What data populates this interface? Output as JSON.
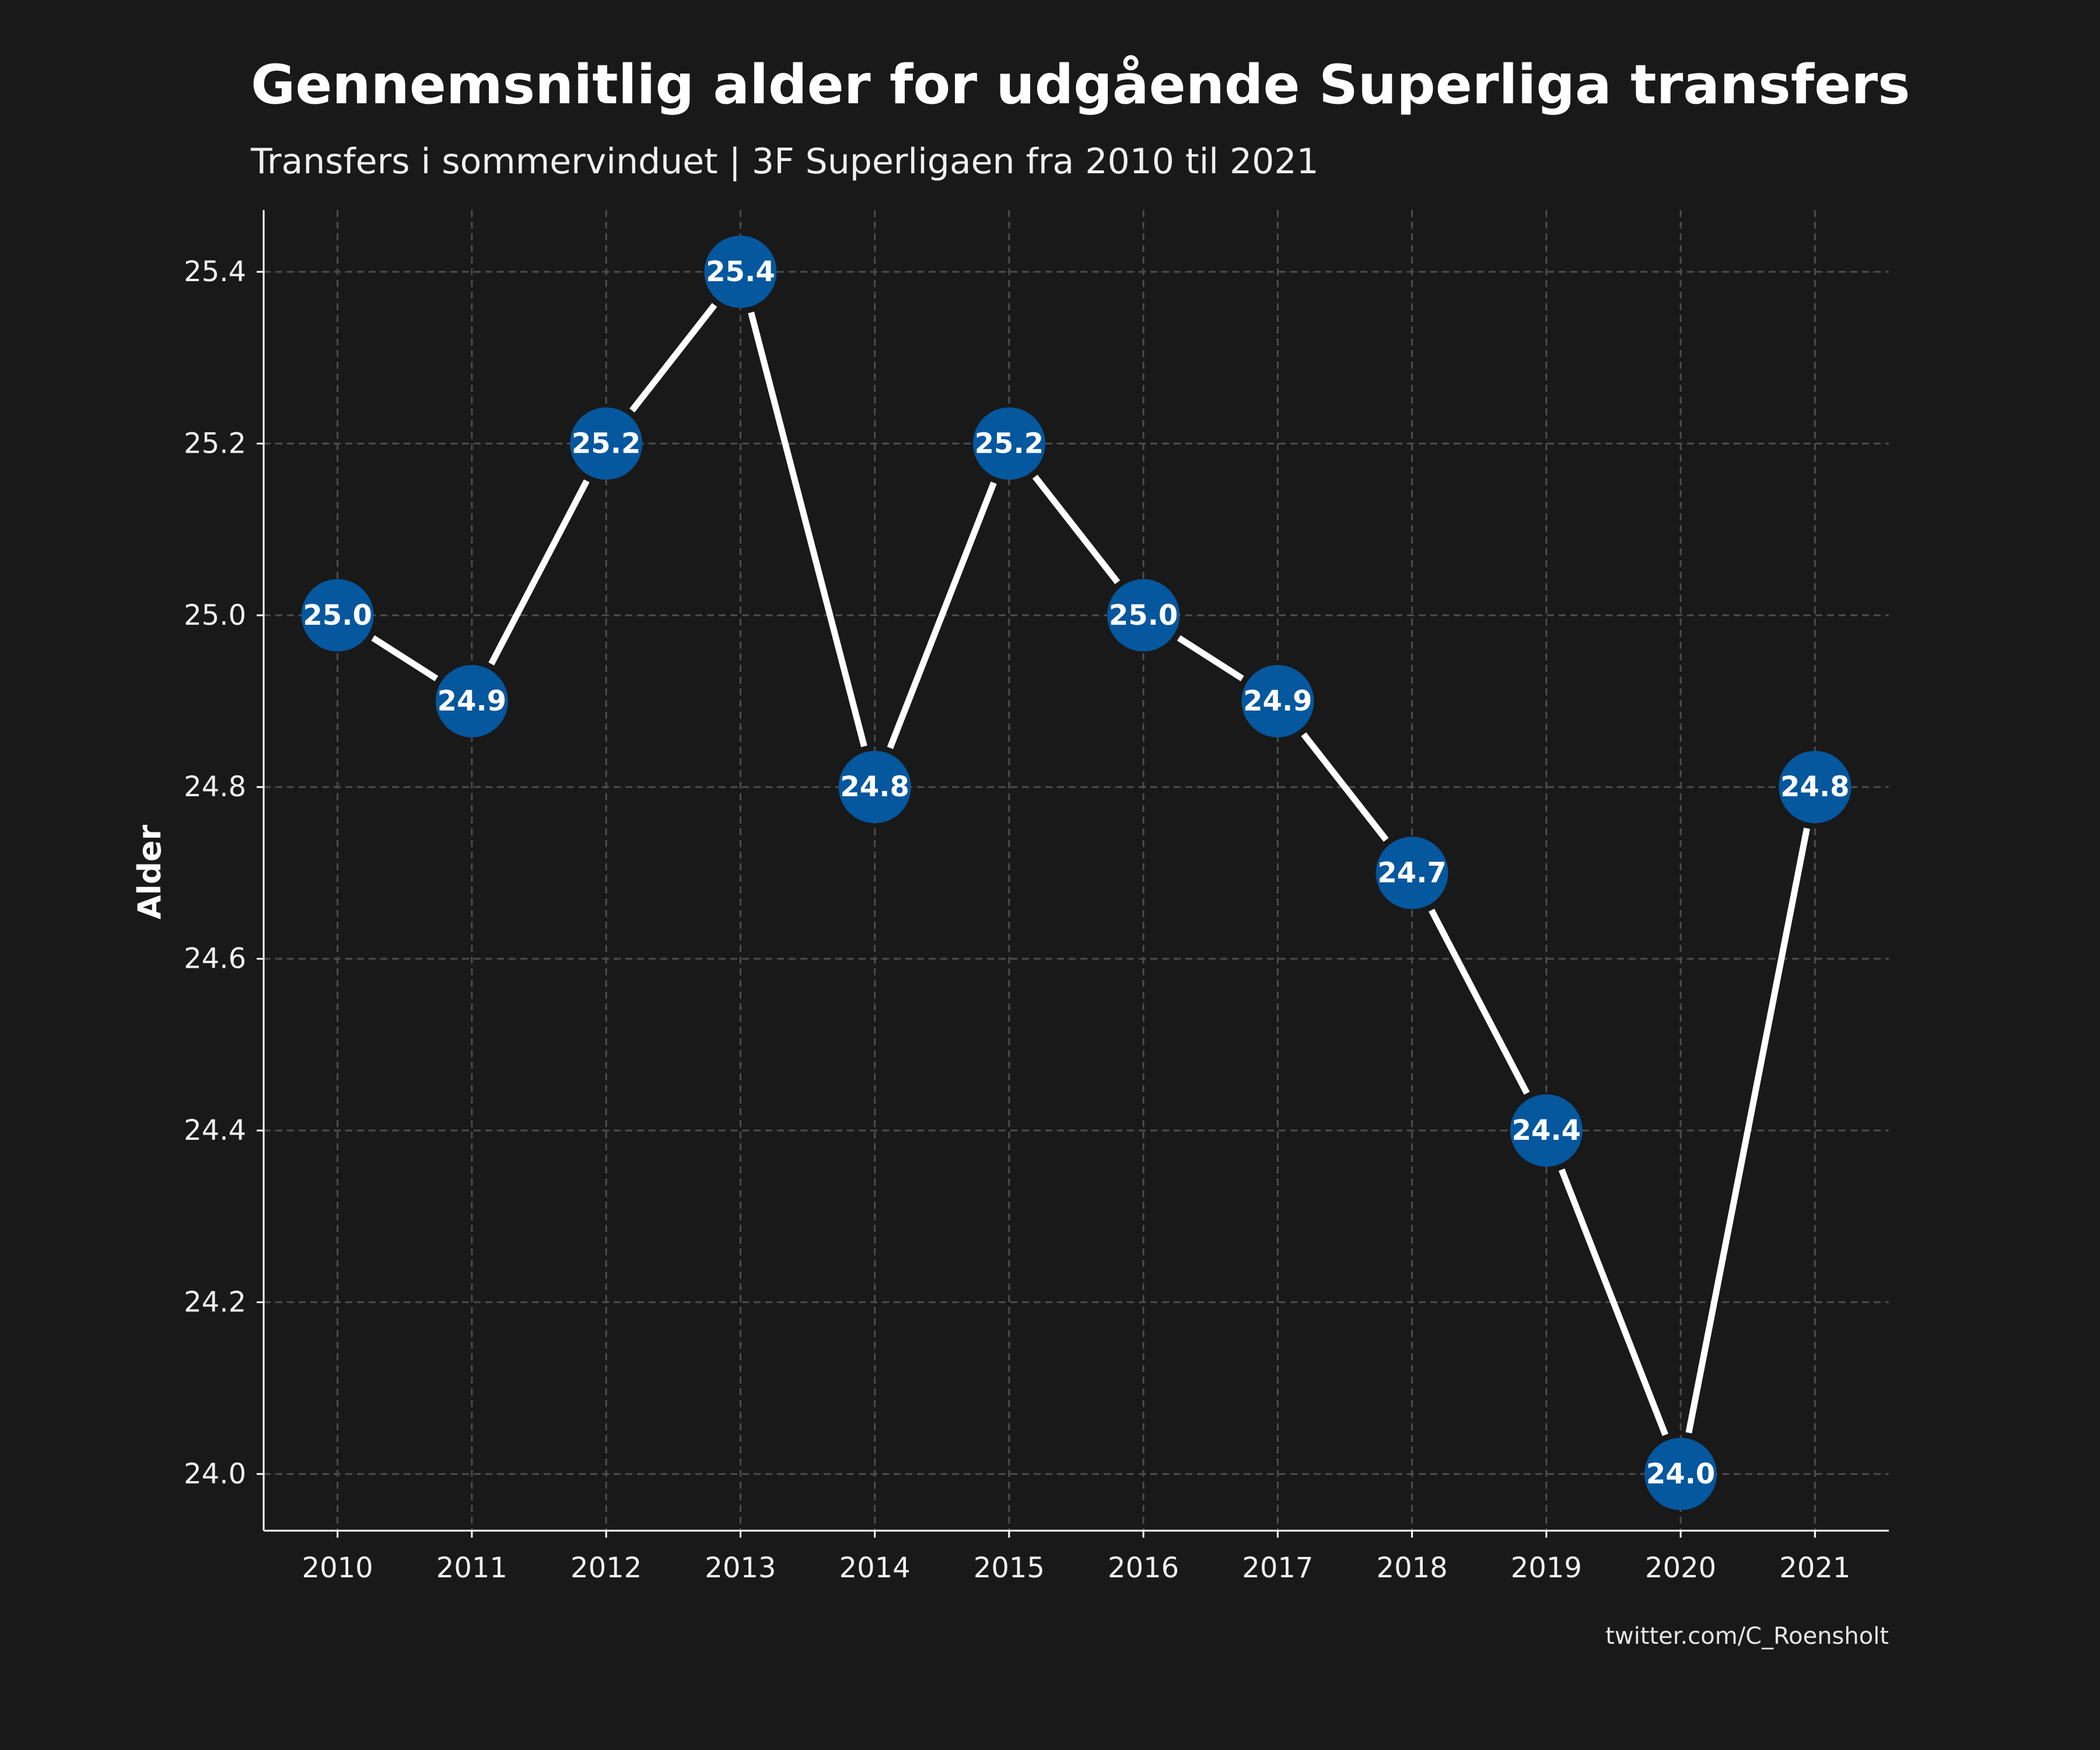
{
  "chart_data": {
    "type": "line",
    "title": "Gennemsnitlig alder for udgående Superliga transfers",
    "subtitle": "Transfers i sommervinduet | 3F Superligaen fra 2010 til 2021",
    "xlabel": "",
    "ylabel": "Alder",
    "caption": "twitter.com/C_Roensholt",
    "x": [
      "2010",
      "2011",
      "2012",
      "2013",
      "2014",
      "2015",
      "2016",
      "2017",
      "2018",
      "2019",
      "2020",
      "2021"
    ],
    "values": [
      25.0,
      24.9,
      25.2,
      25.4,
      24.8,
      25.2,
      25.0,
      24.9,
      24.7,
      24.4,
      24.0,
      24.8
    ],
    "data_labels": [
      "25.0",
      "24.9",
      "25.2",
      "25.4",
      "24.8",
      "25.2",
      "25.0",
      "24.9",
      "24.7",
      "24.4",
      "24.0",
      "24.8"
    ],
    "y_ticks": [
      24.0,
      24.2,
      24.4,
      24.6,
      24.8,
      25.0,
      25.2,
      25.4
    ],
    "y_tick_labels": [
      "24.0",
      "24.2",
      "24.4",
      "24.6",
      "24.8",
      "25.0",
      "25.2",
      "25.4"
    ],
    "ylim": [
      23.934,
      25.472
    ],
    "grid": true,
    "legend": "none",
    "colors": {
      "background": "#191919",
      "line": "#ffffff",
      "point": "#05579e",
      "grid": "#4d4d4d",
      "axis": "#ffffff",
      "text": "#ffffff"
    }
  }
}
